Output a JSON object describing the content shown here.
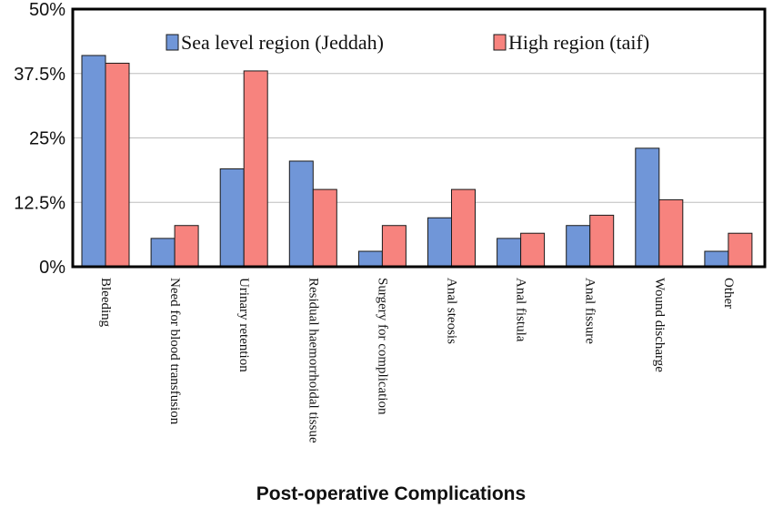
{
  "chart_data": {
    "type": "bar",
    "categories": [
      "Bleeding",
      "Need for blood transfusion",
      "Urinary retention",
      "Residual haemorrhoidal tissue",
      "Surgery for complication",
      "Anal steosis",
      "Anal fistula",
      "Anal fissure",
      "Wound discharge",
      "Other"
    ],
    "series": [
      {
        "name": "Sea level region (Jeddah)",
        "color": "#7096d8",
        "values": [
          41,
          5.5,
          19,
          20.5,
          3,
          9.5,
          5.5,
          8,
          23,
          3
        ]
      },
      {
        "name": "High region (taif)",
        "color": "#f7837e",
        "values": [
          39.5,
          8,
          38,
          15,
          8,
          15,
          6.5,
          10,
          13,
          6.5
        ]
      }
    ],
    "ylim": [
      0,
      50
    ],
    "yticks": [
      "0%",
      "12.5%",
      "25%",
      "37.5%",
      "50%"
    ],
    "ytick_values": [
      0,
      12.5,
      25,
      37.5,
      50
    ],
    "xlabel": "Post-operative Complications",
    "ylabel": "",
    "legend_position": "top",
    "grid": true
  }
}
